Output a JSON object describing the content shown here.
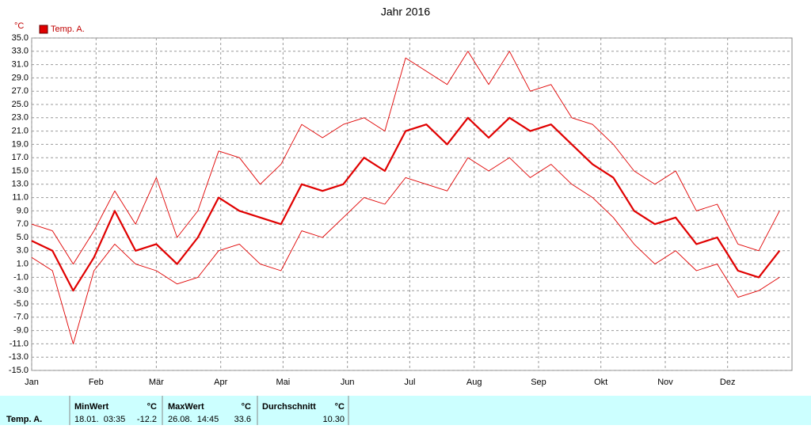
{
  "chart_data": {
    "type": "line",
    "title": "Jahr 2016",
    "y_unit": "°C",
    "legend": "top-left",
    "grid": true,
    "x": [
      1,
      11,
      21,
      31,
      41,
      51,
      61,
      71,
      81,
      91,
      101,
      111,
      121,
      131,
      141,
      151,
      161,
      171,
      181,
      191,
      201,
      211,
      221,
      231,
      241,
      251,
      261,
      271,
      281,
      291,
      301,
      311,
      321,
      331,
      341,
      351,
      361
    ],
    "xlim": [
      1,
      367
    ],
    "xticks": [
      {
        "value": 1,
        "label": "Jan"
      },
      {
        "value": 32,
        "label": "Feb"
      },
      {
        "value": 61,
        "label": "Mär"
      },
      {
        "value": 92,
        "label": "Apr"
      },
      {
        "value": 122,
        "label": "Mai"
      },
      {
        "value": 153,
        "label": "Jun"
      },
      {
        "value": 183,
        "label": "Jul"
      },
      {
        "value": 214,
        "label": "Aug"
      },
      {
        "value": 245,
        "label": "Sep"
      },
      {
        "value": 275,
        "label": "Okt"
      },
      {
        "value": 306,
        "label": "Nov"
      },
      {
        "value": 336,
        "label": "Dez"
      }
    ],
    "ylim": [
      -15,
      35
    ],
    "yticks": [
      {
        "value": -15,
        "label": "-15.0"
      },
      {
        "value": -13,
        "label": "-13.0"
      },
      {
        "value": -11,
        "label": "-11.0"
      },
      {
        "value": -9,
        "label": "-9.0"
      },
      {
        "value": -7,
        "label": "-7.0"
      },
      {
        "value": -5,
        "label": "-5.0"
      },
      {
        "value": -3,
        "label": "-3.0"
      },
      {
        "value": -1,
        "label": "-1.0"
      },
      {
        "value": 1,
        "label": "1.0"
      },
      {
        "value": 3,
        "label": "3.0"
      },
      {
        "value": 5,
        "label": "5.0"
      },
      {
        "value": 7,
        "label": "7.0"
      },
      {
        "value": 9,
        "label": "9.0"
      },
      {
        "value": 11,
        "label": "11.0"
      },
      {
        "value": 13,
        "label": "13.0"
      },
      {
        "value": 15,
        "label": "15.0"
      },
      {
        "value": 17,
        "label": "17.0"
      },
      {
        "value": 19,
        "label": "19.0"
      },
      {
        "value": 21,
        "label": "21.0"
      },
      {
        "value": 23,
        "label": "23.0"
      },
      {
        "value": 25,
        "label": "25.0"
      },
      {
        "value": 27,
        "label": "27.0"
      },
      {
        "value": 29,
        "label": "29.0"
      },
      {
        "value": 31,
        "label": "31.0"
      },
      {
        "value": 33,
        "label": "33.0"
      },
      {
        "value": 35,
        "label": "35.0"
      }
    ],
    "series": [
      {
        "name": "Temp. A.",
        "color": "#e00000",
        "width": 2.2,
        "values": [
          4.5,
          3,
          -3,
          2,
          9,
          3,
          4,
          1,
          5,
          11,
          9,
          8,
          7,
          13,
          12,
          13,
          17,
          15,
          21,
          22,
          19,
          23,
          20,
          23,
          21,
          22,
          19,
          16,
          14,
          9,
          7,
          8,
          4,
          5,
          0,
          -1,
          3
        ]
      },
      {
        "color": "#e00000",
        "width": 0.9,
        "values": [
          2,
          0,
          -11,
          0,
          4,
          1,
          0,
          -2,
          -1,
          3,
          4,
          1,
          0,
          6,
          5,
          8,
          11,
          10,
          14,
          13,
          12,
          17,
          15,
          17,
          14,
          16,
          13,
          11,
          8,
          4,
          1,
          3,
          0,
          1,
          -4,
          -3,
          -1
        ]
      },
      {
        "color": "#e00000",
        "width": 0.9,
        "values": [
          7,
          6,
          1,
          6,
          12,
          7,
          14,
          5,
          9,
          18,
          17,
          13,
          16,
          22,
          20,
          22,
          23,
          21,
          32,
          30,
          28,
          33,
          28,
          33,
          27,
          28,
          23,
          22,
          19,
          15,
          13,
          15,
          9,
          10,
          4,
          3,
          9
        ]
      }
    ]
  },
  "table": {
    "header": [
      "MinWert",
      "°C",
      "MaxWert",
      "°C",
      "Durchschnitt",
      "°C"
    ],
    "rows": [
      [
        "Temp. A.",
        "18.01.  03:35",
        "-12.2",
        "26.08.  14:45",
        "33.6",
        "10.30"
      ]
    ]
  }
}
